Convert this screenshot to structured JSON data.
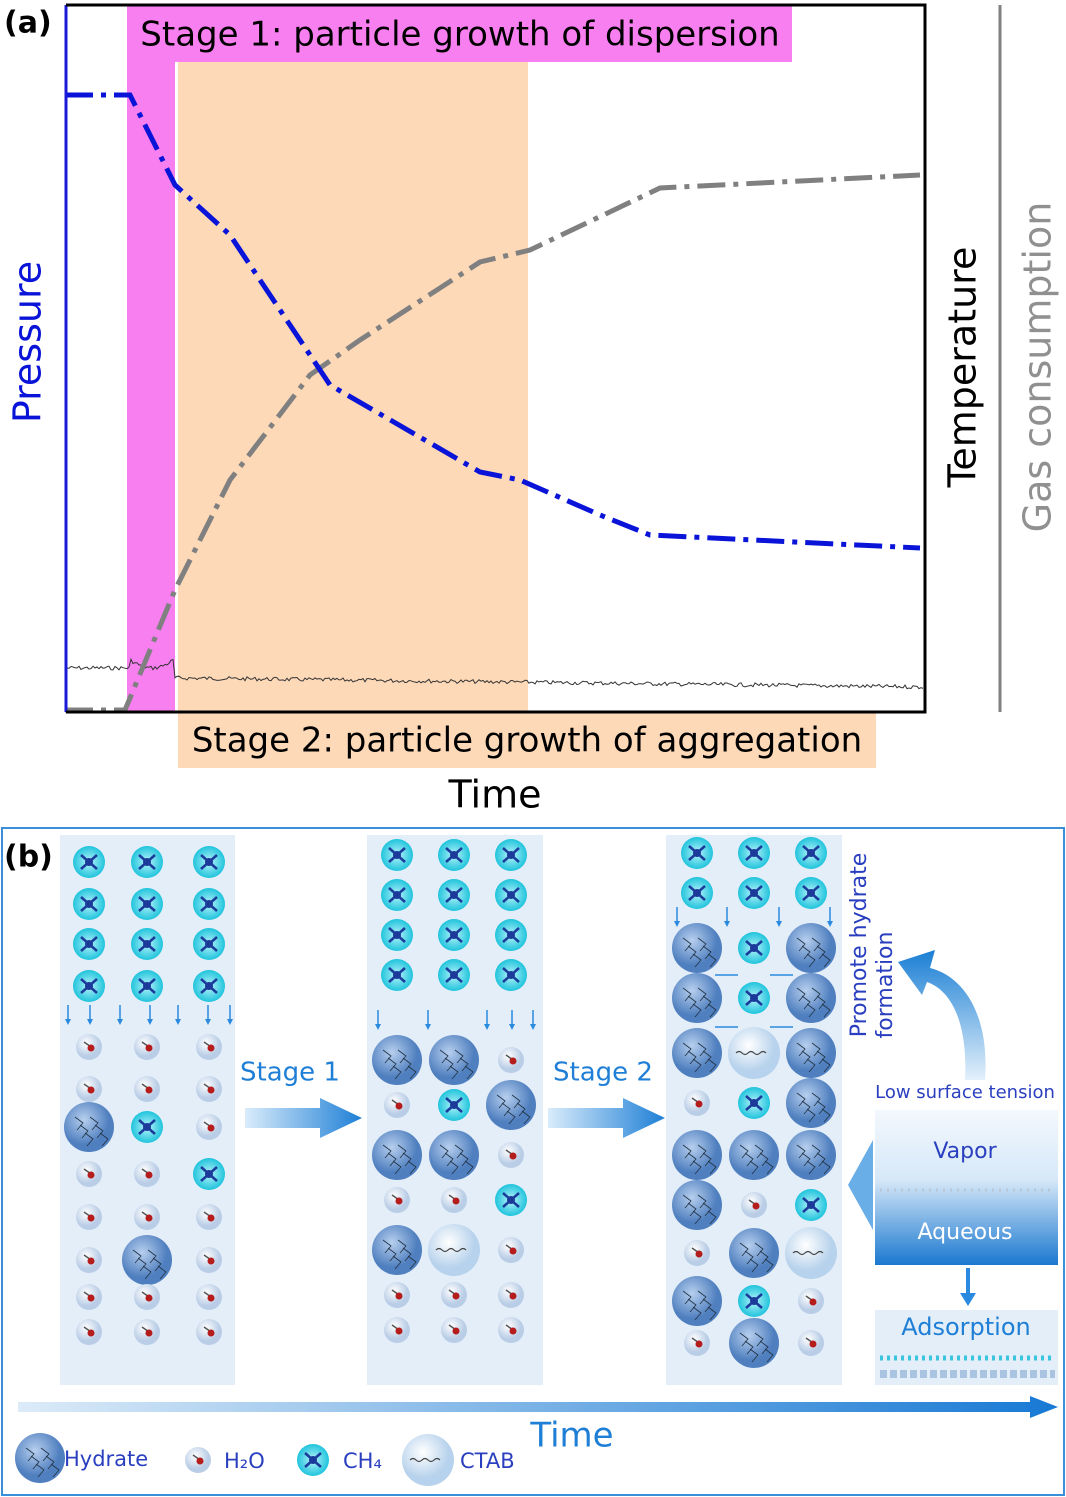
{
  "panel_a": {
    "label": "(a)",
    "stage1": "Stage 1: particle growth of dispersion",
    "stage2": "Stage 2: particle growth of aggregation",
    "x_label": "Time",
    "y_label_left": "Pressure",
    "y_label_right1": "Temperature",
    "y_label_right2": "Gas consumption"
  },
  "panel_b": {
    "label": "(b)",
    "arrow1": "Stage 1",
    "arrow2": "Stage 2",
    "promote": [
      "Promote hydrate",
      "formation"
    ],
    "low_surface": "Low surface tension",
    "vapor": "Vapor",
    "aqueous": "Aqueous",
    "adsorption": "Adsorption",
    "time": "Time",
    "legend": [
      "Hydrate",
      "H₂O",
      "CH₄",
      "CTAB"
    ]
  }
}
